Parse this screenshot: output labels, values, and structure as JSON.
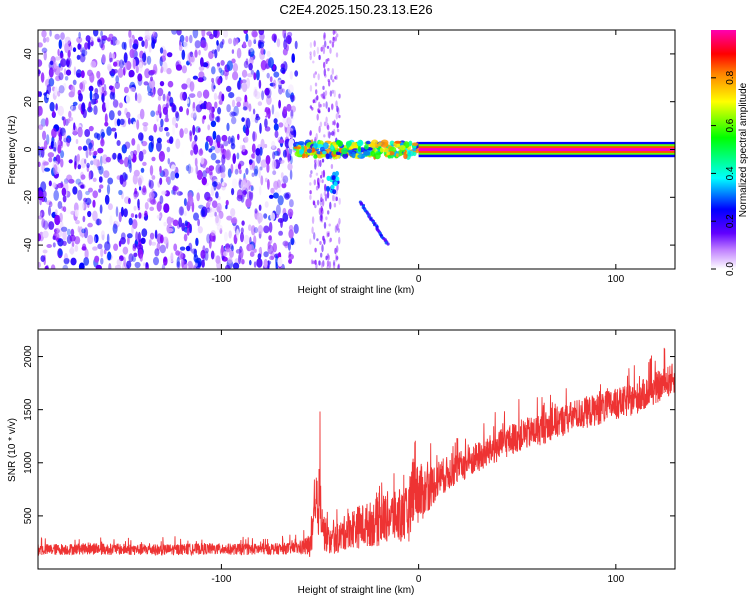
{
  "page": {
    "title": "C2E4.2025.150.23.13.E26"
  },
  "chart_data": [
    {
      "type": "heatmap",
      "title": "C2E4.2025.150.23.13.E26",
      "xlabel": "Height of straight line (km)",
      "ylabel": "Frequency (Hz)",
      "xlim": [
        -193,
        130
      ],
      "ylim": [
        -50,
        50
      ],
      "x_ticks": [
        -100,
        0,
        100
      ],
      "y_ticks": [
        -40,
        -20,
        0,
        20,
        40
      ],
      "x_tick_labels": [
        "-100",
        "0",
        "100"
      ],
      "y_tick_labels": [
        "-40",
        "-20",
        "0",
        "20",
        "40"
      ],
      "grid": false,
      "regions": [
        {
          "x_range": [
            -193,
            -62
          ],
          "description_value": "scattered noise",
          "amplitude": 0.15
        },
        {
          "x_range": [
            -62,
            0
          ],
          "center_freq": 0,
          "amplitude": 0.6
        },
        {
          "x_range": [
            0,
            130
          ],
          "center_freq": 0,
          "amplitude": 1.0
        }
      ],
      "colorbar": {
        "label": "Normalized spectral amplitude",
        "range": [
          0.0,
          1.0
        ],
        "ticks": [
          0.0,
          0.2,
          0.4,
          0.6,
          0.8
        ],
        "tick_labels": [
          "0.0",
          "0.2",
          "0.4",
          "0.6",
          "0.8"
        ],
        "colors": [
          "#ffffff",
          "#8000ff",
          "#0000ff",
          "#00ffff",
          "#00ff00",
          "#ffff00",
          "#ff8000",
          "#ff0000",
          "#ff00c0"
        ]
      }
    },
    {
      "type": "line",
      "xlabel": "Height of straight line (km)",
      "ylabel": "SNR (10 * v/v)",
      "xlim": [
        -193,
        130
      ],
      "ylim": [
        0,
        2250
      ],
      "x_ticks": [
        -100,
        0,
        100
      ],
      "y_ticks": [
        500,
        1000,
        1500,
        2000
      ],
      "x_tick_labels": [
        "-100",
        "0",
        "100"
      ],
      "y_tick_labels": [
        "500",
        "1000",
        "1500",
        "2000"
      ],
      "grid": false,
      "series": [
        {
          "color": "#ee3333",
          "x": [
            -193,
            -170,
            -150,
            -130,
            -110,
            -90,
            -70,
            -60,
            -55,
            -50,
            -48,
            -45,
            -40,
            -35,
            -30,
            -25,
            -20,
            -15,
            -10,
            -5,
            -2,
            0,
            5,
            10,
            20,
            30,
            40,
            50,
            60,
            70,
            80,
            90,
            100,
            110,
            120,
            130
          ],
          "values": [
            180,
            190,
            185,
            180,
            190,
            185,
            190,
            200,
            220,
            700,
            350,
            250,
            300,
            380,
            400,
            420,
            450,
            500,
            480,
            520,
            900,
            700,
            750,
            850,
            950,
            1050,
            1150,
            1250,
            1300,
            1380,
            1450,
            1500,
            1550,
            1600,
            1700,
            1800
          ],
          "amplitude": [
            90,
            90,
            90,
            90,
            90,
            90,
            90,
            100,
            200,
            600,
            300,
            200,
            250,
            300,
            350,
            350,
            400,
            400,
            400,
            450,
            650,
            500,
            350,
            300,
            250,
            250,
            250,
            250,
            250,
            250,
            250,
            250,
            250,
            250,
            250,
            250
          ]
        }
      ]
    }
  ]
}
